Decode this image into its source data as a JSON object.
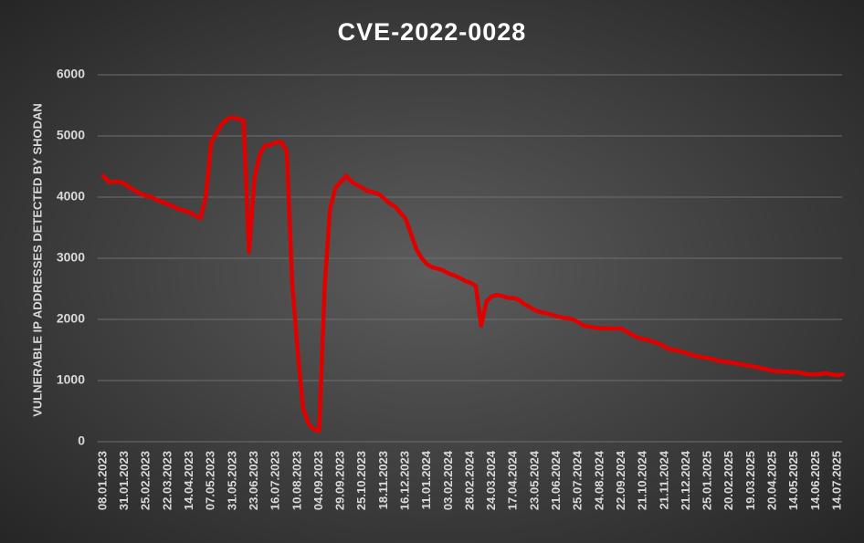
{
  "chart_data": {
    "type": "line",
    "title": "CVE-2022-0028",
    "y_label": "VULNERABLE IP ADDRESSES DETECTED BY SHODAN",
    "color": "#e00000",
    "grid": true,
    "ylim": [
      0,
      6000
    ],
    "yticks": [
      0,
      1000,
      2000,
      3000,
      4000,
      5000,
      6000
    ],
    "categories": [
      "08.01.2023",
      null,
      null,
      null,
      "31.01.2023",
      null,
      null,
      null,
      "25.02.2023",
      null,
      null,
      null,
      "22.03.2023",
      null,
      null,
      null,
      "14.04.2023",
      null,
      null,
      null,
      "07.05.2023",
      null,
      null,
      null,
      "31.05.2023",
      null,
      null,
      null,
      "23.06.2023",
      null,
      null,
      null,
      "16.07.2023",
      null,
      null,
      null,
      "10.08.2023",
      null,
      null,
      null,
      "04.09.2023",
      null,
      null,
      null,
      "29.09.2023",
      null,
      null,
      null,
      "25.10.2023",
      null,
      null,
      null,
      "18.11.2023",
      null,
      null,
      null,
      "16.12.2023",
      null,
      null,
      null,
      "11.01.2024",
      null,
      null,
      null,
      "03.02.2024",
      null,
      null,
      null,
      "28.02.2024",
      null,
      null,
      null,
      "24.03.2024",
      null,
      null,
      null,
      "17.04.2024",
      null,
      null,
      null,
      "23.05.2024",
      null,
      null,
      null,
      "21.06.2024",
      null,
      null,
      null,
      "25.07.2024",
      null,
      null,
      null,
      "24.08.2024",
      null,
      null,
      null,
      "22.09.2024",
      null,
      null,
      null,
      "21.10.2024",
      null,
      null,
      null,
      "21.11.2024",
      null,
      null,
      null,
      "21.12.2024",
      null,
      null,
      null,
      "25.01.2025",
      null,
      null,
      null,
      "20.02.2025",
      null,
      null,
      null,
      "19.03.2025",
      null,
      null,
      null,
      "20.04.2025",
      null,
      null,
      null,
      "14.05.2025",
      null,
      null,
      null,
      "14.06.2025",
      null,
      null,
      null,
      "14.07.2025",
      null
    ],
    "values": [
      4350,
      4250,
      4250,
      4250,
      4220,
      4150,
      4100,
      4050,
      4020,
      4000,
      3950,
      3920,
      3880,
      3850,
      3800,
      3780,
      3750,
      3700,
      3650,
      4000,
      4900,
      5050,
      5200,
      5280,
      5300,
      5280,
      5250,
      3100,
      4300,
      4700,
      4850,
      4850,
      4900,
      4900,
      4750,
      2600,
      1500,
      550,
      300,
      200,
      180,
      2500,
      3800,
      4150,
      4250,
      4350,
      4250,
      4200,
      4150,
      4100,
      4080,
      4050,
      3980,
      3900,
      3850,
      3750,
      3650,
      3400,
      3150,
      3000,
      2900,
      2850,
      2830,
      2800,
      2750,
      2720,
      2680,
      2630,
      2600,
      2550,
      1900,
      2300,
      2380,
      2400,
      2380,
      2350,
      2350,
      2320,
      2250,
      2200,
      2150,
      2120,
      2100,
      2080,
      2050,
      2030,
      2020,
      2000,
      1950,
      1900,
      1880,
      1870,
      1850,
      1860,
      1850,
      1850,
      1850,
      1800,
      1750,
      1700,
      1680,
      1660,
      1630,
      1600,
      1550,
      1510,
      1500,
      1470,
      1450,
      1420,
      1400,
      1380,
      1370,
      1350,
      1320,
      1310,
      1300,
      1280,
      1270,
      1250,
      1240,
      1220,
      1200,
      1180,
      1160,
      1150,
      1150,
      1140,
      1140,
      1130,
      1110,
      1100,
      1100,
      1110,
      1120,
      1100,
      1090,
      1100
    ]
  }
}
